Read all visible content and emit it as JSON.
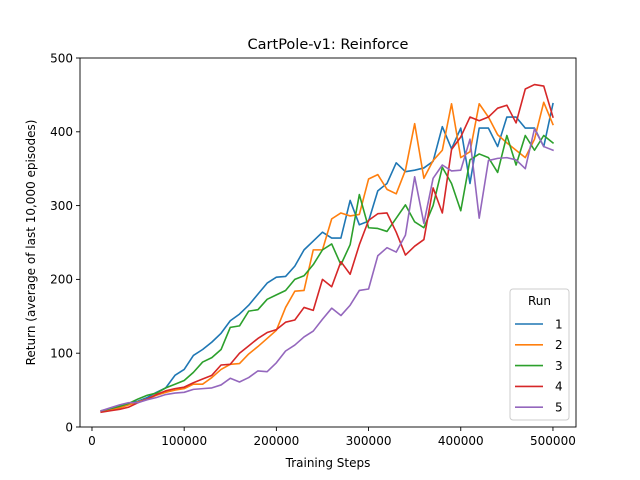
{
  "chart_data": {
    "type": "line",
    "title": "CartPole-v1: Reinforce",
    "xlabel": "Training Steps",
    "ylabel": "Return (average of last 10,000 episodes)",
    "xlim": [
      -13000,
      525000
    ],
    "ylim": [
      0,
      500
    ],
    "xticks": [
      0,
      100000,
      200000,
      300000,
      400000,
      500000
    ],
    "xtick_labels": [
      "0",
      "100000",
      "200000",
      "300000",
      "400000",
      "500000"
    ],
    "yticks": [
      0,
      100,
      200,
      300,
      400,
      500
    ],
    "ytick_labels": [
      "0",
      "100",
      "200",
      "300",
      "400",
      "500"
    ],
    "grid": false,
    "legend": {
      "title": "Run",
      "position": "lower right"
    },
    "x": [
      10000,
      20000,
      30000,
      40000,
      50000,
      60000,
      70000,
      80000,
      90000,
      100000,
      110000,
      120000,
      130000,
      140000,
      150000,
      160000,
      170000,
      180000,
      190000,
      200000,
      210000,
      220000,
      230000,
      240000,
      250000,
      260000,
      270000,
      280000,
      290000,
      300000,
      310000,
      320000,
      330000,
      340000,
      350000,
      360000,
      370000,
      380000,
      390000,
      400000,
      410000,
      420000,
      430000,
      440000,
      450000,
      460000,
      470000,
      480000,
      490000,
      500000
    ],
    "series": [
      {
        "name": "1",
        "color": "#1f77b4",
        "values": [
          21,
          24,
          28,
          32,
          35,
          40,
          47,
          53,
          70,
          78,
          97,
          105,
          115,
          127,
          144,
          153,
          165,
          180,
          195,
          203,
          204,
          218,
          240,
          252,
          264,
          256,
          256,
          307,
          274,
          279,
          320,
          330,
          358,
          346,
          348,
          351,
          360,
          407,
          377,
          405,
          330,
          405,
          405,
          380,
          420,
          420,
          405,
          405,
          380,
          438
        ]
      },
      {
        "name": "2",
        "color": "#ff7f0e",
        "values": [
          21,
          23,
          26,
          30,
          34,
          38,
          43,
          47,
          50,
          52,
          58,
          58,
          67,
          78,
          85,
          86,
          99,
          109,
          120,
          131,
          162,
          184,
          185,
          240,
          240,
          282,
          290,
          286,
          288,
          336,
          342,
          322,
          316,
          348,
          411,
          337,
          361,
          375,
          438,
          365,
          373,
          438,
          420,
          396,
          385,
          375,
          365,
          390,
          440,
          410
        ]
      },
      {
        "name": "3",
        "color": "#2ca02c",
        "values": [
          22,
          25,
          28,
          32,
          38,
          43,
          46,
          53,
          58,
          63,
          74,
          88,
          94,
          105,
          135,
          137,
          157,
          159,
          173,
          179,
          185,
          200,
          205,
          220,
          240,
          248,
          220,
          247,
          315,
          270,
          269,
          265,
          283,
          301,
          278,
          270,
          300,
          352,
          330,
          293,
          362,
          370,
          365,
          345,
          395,
          355,
          395,
          375,
          395,
          385
        ]
      },
      {
        "name": "4",
        "color": "#d62728",
        "values": [
          20,
          22,
          24,
          27,
          33,
          38,
          44,
          49,
          52,
          54,
          60,
          65,
          70,
          84,
          85,
          100,
          110,
          120,
          128,
          132,
          142,
          145,
          162,
          158,
          200,
          190,
          224,
          207,
          247,
          280,
          289,
          290,
          264,
          233,
          245,
          254,
          324,
          290,
          376,
          393,
          420,
          415,
          420,
          432,
          436,
          412,
          458,
          464,
          462,
          420
        ]
      },
      {
        "name": "5",
        "color": "#9467bd",
        "values": [
          22,
          26,
          30,
          33,
          33,
          37,
          40,
          44,
          46,
          47,
          51,
          52,
          53,
          57,
          66,
          61,
          67,
          76,
          75,
          87,
          103,
          111,
          122,
          130,
          146,
          161,
          151,
          165,
          185,
          187,
          232,
          243,
          237,
          260,
          339,
          276,
          337,
          355,
          347,
          348,
          390,
          283,
          361,
          364,
          365,
          362,
          350,
          404,
          380,
          375
        ]
      }
    ]
  }
}
